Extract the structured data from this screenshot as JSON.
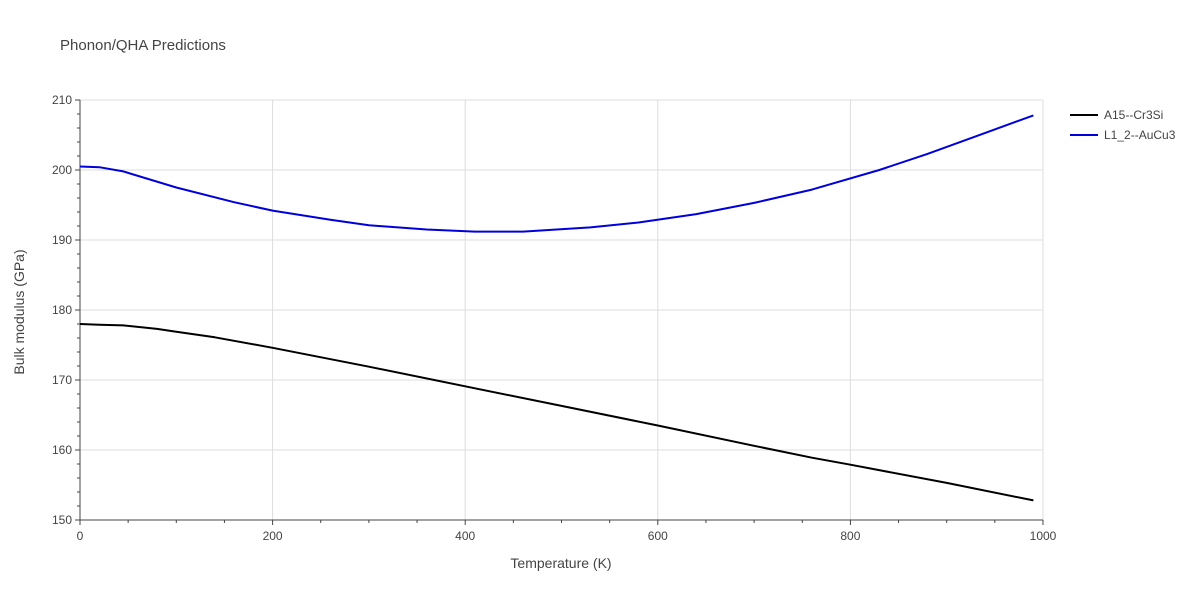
{
  "chart_data": {
    "type": "line",
    "title": "Phonon/QHA Predictions",
    "xlabel": "Temperature (K)",
    "ylabel": "Bulk modulus (GPa)",
    "xlim": [
      0,
      1000
    ],
    "ylim": [
      150,
      210
    ],
    "xticks": [
      0,
      200,
      400,
      600,
      800,
      1000
    ],
    "yticks": [
      150,
      160,
      170,
      180,
      190,
      200,
      210
    ],
    "grid": true,
    "legend_position": "top-right",
    "series": [
      {
        "name": "A15--Cr3Si",
        "color": "#000000",
        "x": [
          0,
          20,
          45,
          80,
          100,
          140,
          200,
          300,
          400,
          500,
          600,
          700,
          760,
          800,
          900,
          990
        ],
        "y": [
          178.0,
          177.9,
          177.8,
          177.3,
          176.9,
          176.1,
          174.6,
          171.9,
          169.1,
          166.3,
          163.5,
          160.6,
          158.9,
          157.9,
          155.3,
          152.8
        ]
      },
      {
        "name": "L1_2--AuCu3",
        "color": "#0000dd",
        "x": [
          0,
          20,
          45,
          100,
          160,
          200,
          260,
          300,
          360,
          410,
          460,
          530,
          580,
          640,
          700,
          760,
          830,
          880,
          940,
          990
        ],
        "y": [
          200.5,
          200.4,
          199.8,
          197.5,
          195.4,
          194.2,
          192.9,
          192.1,
          191.5,
          191.2,
          191.2,
          191.8,
          192.5,
          193.7,
          195.3,
          197.2,
          200.0,
          202.3,
          205.3,
          207.8
        ]
      }
    ]
  }
}
